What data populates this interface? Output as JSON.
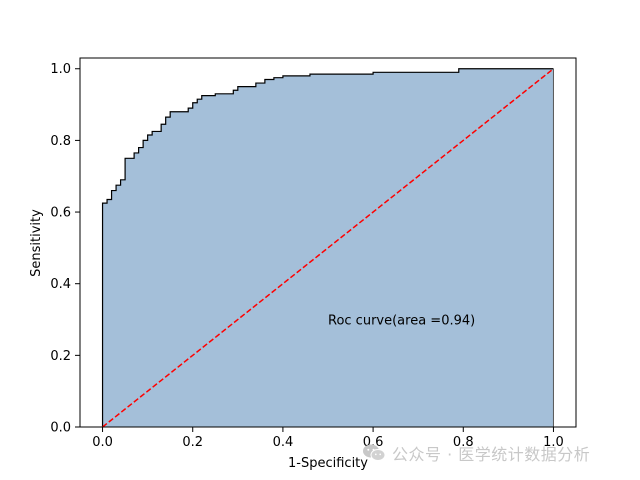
{
  "chart_data": {
    "type": "area",
    "xlabel": "1-Specificity",
    "ylabel": "Sensitivity",
    "xlim": [
      -0.05,
      1.05
    ],
    "ylim": [
      0.0,
      1.03
    ],
    "xticks": [
      "0.0",
      "0.2",
      "0.4",
      "0.6",
      "0.8",
      "1.0"
    ],
    "yticks": [
      "0.0",
      "0.2",
      "0.4",
      "0.6",
      "0.8",
      "1.0"
    ],
    "annotation": "Roc curve(area =0.94)",
    "annotation_position": [
      0.5,
      0.3
    ],
    "roc_x": [
      0.0,
      0.0,
      0.01,
      0.01,
      0.02,
      0.02,
      0.03,
      0.03,
      0.04,
      0.04,
      0.05,
      0.05,
      0.07,
      0.07,
      0.08,
      0.08,
      0.09,
      0.09,
      0.1,
      0.1,
      0.11,
      0.11,
      0.13,
      0.13,
      0.14,
      0.14,
      0.15,
      0.15,
      0.19,
      0.19,
      0.2,
      0.2,
      0.21,
      0.21,
      0.22,
      0.22,
      0.25,
      0.25,
      0.29,
      0.29,
      0.3,
      0.3,
      0.34,
      0.34,
      0.36,
      0.36,
      0.38,
      0.38,
      0.4,
      0.4,
      0.46,
      0.46,
      0.6,
      0.6,
      0.79,
      0.79,
      1.0
    ],
    "roc_y": [
      0.0,
      0.625,
      0.625,
      0.635,
      0.635,
      0.66,
      0.66,
      0.675,
      0.675,
      0.69,
      0.69,
      0.75,
      0.75,
      0.765,
      0.765,
      0.78,
      0.78,
      0.8,
      0.8,
      0.815,
      0.815,
      0.825,
      0.825,
      0.845,
      0.845,
      0.865,
      0.865,
      0.88,
      0.88,
      0.89,
      0.89,
      0.905,
      0.905,
      0.915,
      0.915,
      0.925,
      0.925,
      0.93,
      0.93,
      0.94,
      0.94,
      0.95,
      0.95,
      0.96,
      0.96,
      0.97,
      0.97,
      0.975,
      0.975,
      0.98,
      0.98,
      0.985,
      0.985,
      0.99,
      0.99,
      1.0,
      1.0
    ],
    "diagonal": {
      "x": [
        0.0,
        1.0
      ],
      "y": [
        0.0,
        1.0
      ]
    },
    "colors": {
      "fill": "#a4bfd9",
      "curve": "#000000",
      "diagonal": "#ff0000"
    },
    "grid": false
  },
  "watermark": {
    "icon": "wechat-icon",
    "text": "公众号 · 医学统计数据分析"
  }
}
